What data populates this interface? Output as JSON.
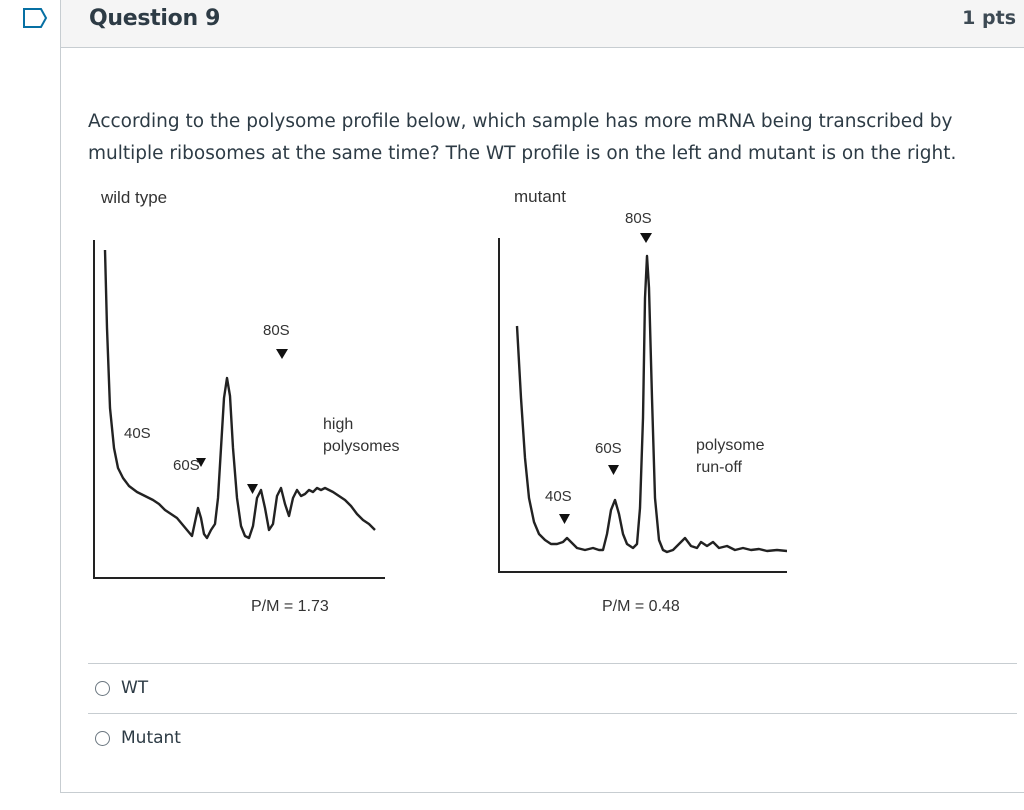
{
  "question": {
    "title": "Question 9",
    "points": "1 pts",
    "text": "According to the polysome profile below, which sample has more mRNA being transcribed by multiple ribosomes at the same time? The WT profile is on the left and mutant is on the right."
  },
  "figure": {
    "left_panel": {
      "title": "wild type",
      "peaks": [
        "40S",
        "60S",
        "80S"
      ],
      "annotation_line1": "high",
      "annotation_line2": "polysomes",
      "ratio": "P/M = 1.73"
    },
    "right_panel": {
      "title": "mutant",
      "peaks": [
        "40S",
        "60S",
        "80S"
      ],
      "annotation_line1": "polysome",
      "annotation_line2": "run-off",
      "ratio": "P/M = 0.48"
    }
  },
  "answers": [
    {
      "label": "WT"
    },
    {
      "label": "Mutant"
    }
  ],
  "colors": {
    "flag_border": "#0770a3",
    "header_bg": "#f5f5f5",
    "text": "#2d3b45",
    "border": "#c7cdd1"
  },
  "icons": {
    "flag": "bookmark-flag-icon",
    "radio": "radio-unchecked-icon"
  }
}
